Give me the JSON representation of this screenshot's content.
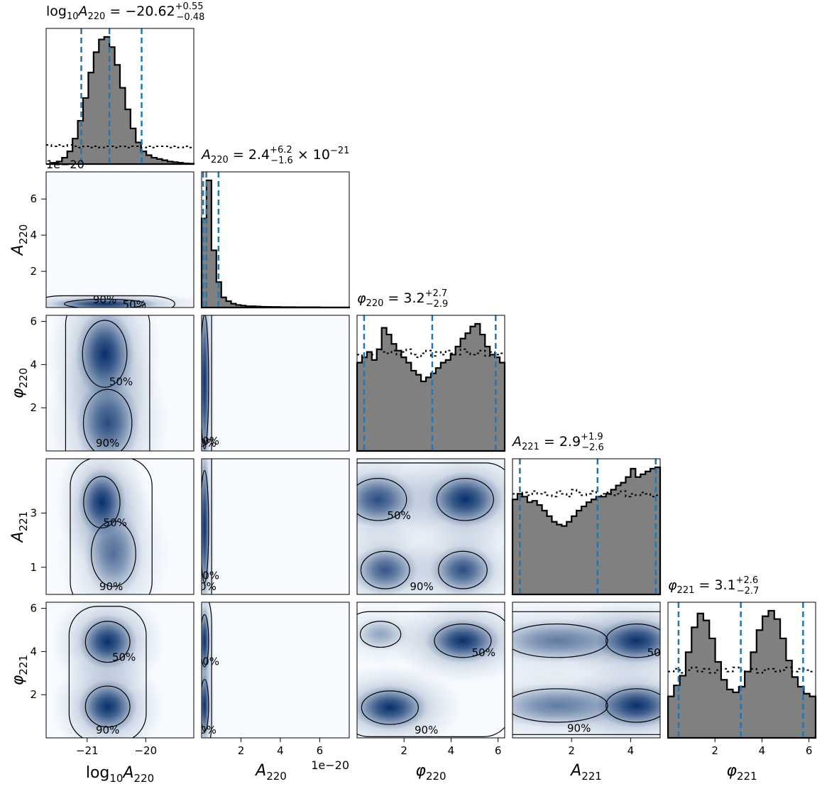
{
  "chart_data": {
    "type": "corner",
    "parameters": [
      {
        "key": "log10A220",
        "xlabel": "log10A220",
        "title": "log10A220 = −20.62 +0.55 −0.48",
        "median": -20.62,
        "err_plus": 0.55,
        "err_minus": 0.48,
        "range": [
          -21.7,
          -19.18
        ],
        "ticks": [
          -21,
          -20
        ],
        "quantiles": [
          -21.1,
          -20.62,
          -20.07
        ]
      },
      {
        "key": "A220",
        "xlabel": "A220",
        "title": "A220 = 2.4 +6.2 −1.6 × 10^−21",
        "median": 2.4e-21,
        "err_plus": 6.2e-21,
        "err_minus": 1.6e-21,
        "range": [
          0,
          7.5e-20
        ],
        "ticks": [
          2,
          4,
          6
        ],
        "tick_scale": "1e−20",
        "quantiles": [
          8e-22,
          2.4e-21,
          8.6e-21
        ]
      },
      {
        "key": "phi220",
        "xlabel": "φ220",
        "title": "φ220 = 3.2 +2.7 −2.9",
        "median": 3.2,
        "err_plus": 2.7,
        "err_minus": 2.9,
        "range": [
          0,
          6.283
        ],
        "ticks": [
          2,
          4,
          6
        ],
        "quantiles": [
          0.3,
          3.2,
          5.9
        ]
      },
      {
        "key": "A221",
        "xlabel": "A221",
        "title": "A221 = 2.9 +1.9 −2.6",
        "median": 2.9,
        "err_plus": 1.9,
        "err_minus": 2.6,
        "range": [
          0,
          5
        ],
        "ticks": [
          2,
          4
        ],
        "quantiles": [
          0.25,
          2.88,
          4.85
        ]
      },
      {
        "key": "phi221",
        "xlabel": "φ221",
        "title": "φ221 = 3.1 +2.6 −2.7",
        "median": 3.1,
        "err_plus": 2.6,
        "err_minus": 2.7,
        "range": [
          0,
          6.283
        ],
        "ticks": [
          2,
          4,
          6
        ],
        "quantiles": [
          0.45,
          3.1,
          5.75
        ]
      }
    ],
    "row_ticks": [
      {
        "row": "A220",
        "ticks": [
          2,
          4,
          6
        ],
        "tick_scale": "1e−20"
      },
      {
        "row": "phi220",
        "ticks": [
          2,
          4,
          6
        ]
      },
      {
        "row": "A221",
        "ticks": [
          1,
          3
        ]
      },
      {
        "row": "phi221",
        "ticks": [
          2,
          4,
          6
        ]
      }
    ],
    "histograms": [
      {
        "param": "log10A220",
        "posterior": [
          0,
          0.01,
          0.02,
          0.05,
          0.1,
          0.2,
          0.34,
          0.52,
          0.72,
          0.88,
          0.98,
          1.0,
          0.92,
          0.78,
          0.6,
          0.43,
          0.28,
          0.17,
          0.1,
          0.07,
          0.05,
          0.04,
          0.03,
          0.02,
          0.015,
          0.01,
          0.005,
          0.003
        ],
        "prior": [
          0.15,
          0.14,
          0.15,
          0.14,
          0.15,
          0.14,
          0.13,
          0.14,
          0.13,
          0.14,
          0.13,
          0.14,
          0.14,
          0.13,
          0.14,
          0.13,
          0.14,
          0.14,
          0.13,
          0.14,
          0.13,
          0.14,
          0.14,
          0.13,
          0.14,
          0.13,
          0.14,
          0.13
        ]
      },
      {
        "param": "A220",
        "posterior": [
          0.7,
          1.0,
          0.45,
          0.2,
          0.08,
          0.05,
          0.03,
          0.02,
          0.015,
          0.01,
          0.01,
          0.008,
          0.006,
          0.005,
          0.004,
          0.004,
          0.003,
          0.003,
          0.003,
          0.002,
          0.002,
          0.002,
          0.002,
          0.002,
          0.001,
          0.001,
          0.001,
          0.001,
          0.001,
          0.001
        ],
        "prior": []
      },
      {
        "param": "phi220",
        "posterior": [
          0.66,
          0.7,
          0.74,
          0.68,
          0.76,
          0.92,
          0.87,
          0.8,
          0.75,
          0.7,
          0.66,
          0.6,
          0.57,
          0.52,
          0.55,
          0.58,
          0.62,
          0.66,
          0.68,
          0.72,
          0.78,
          0.84,
          0.88,
          0.93,
          0.95,
          0.87,
          0.78,
          0.72,
          0.7,
          0.66
        ],
        "prior": [
          0.72,
          0.7,
          0.74,
          0.72,
          0.76,
          0.74,
          0.73,
          0.75,
          0.72,
          0.74,
          0.76,
          0.72,
          0.7,
          0.73,
          0.75,
          0.71,
          0.74,
          0.72,
          0.75,
          0.73,
          0.72,
          0.76,
          0.74,
          0.72,
          0.73,
          0.75,
          0.71,
          0.74,
          0.72,
          0.73
        ]
      },
      {
        "param": "A221",
        "posterior": [
          0.68,
          0.72,
          0.7,
          0.66,
          0.67,
          0.64,
          0.6,
          0.56,
          0.52,
          0.5,
          0.49,
          0.52,
          0.56,
          0.6,
          0.63,
          0.66,
          0.68,
          0.7,
          0.7,
          0.72,
          0.75,
          0.78,
          0.8,
          0.84,
          0.9,
          0.84,
          0.86,
          0.88,
          0.9,
          0.91
        ],
        "prior": [
          0.72,
          0.7,
          0.73,
          0.71,
          0.74,
          0.72,
          0.73,
          0.71,
          0.7,
          0.74,
          0.72,
          0.7,
          0.75,
          0.73,
          0.71,
          0.72,
          0.74,
          0.7,
          0.72,
          0.73,
          0.71,
          0.72,
          0.74,
          0.7,
          0.72,
          0.71,
          0.73,
          0.72,
          0.7,
          0.71
        ]
      },
      {
        "param": "phi221",
        "posterior": [
          0.3,
          0.38,
          0.45,
          0.62,
          0.8,
          0.9,
          0.85,
          0.72,
          0.55,
          0.42,
          0.35,
          0.33,
          0.37,
          0.48,
          0.62,
          0.78,
          0.88,
          0.92,
          0.86,
          0.72,
          0.56,
          0.44,
          0.37,
          0.32,
          0.3
        ],
        "prior": [
          0.48,
          0.5,
          0.47,
          0.49,
          0.51,
          0.48,
          0.5,
          0.47,
          0.49,
          0.5,
          0.48,
          0.51,
          0.49,
          0.48,
          0.5,
          0.47,
          0.49,
          0.5,
          0.48,
          0.49,
          0.51,
          0.48,
          0.5,
          0.49,
          0.48
        ]
      }
    ],
    "contour_labels": [
      "50%",
      "90%"
    ],
    "densities": [
      {
        "x": "log10A220",
        "y": "A220",
        "blobs": [
          {
            "x": -20.7,
            "y": 2e-21,
            "sx": 0.4,
            "sy": 1.5e-21,
            "w": 1.0
          }
        ]
      },
      {
        "x": "log10A220",
        "y": "phi220",
        "blobs": [
          {
            "x": -20.7,
            "y": 4.5,
            "sx": 0.22,
            "sy": 0.9,
            "w": 1.0
          },
          {
            "x": -20.65,
            "y": 1.3,
            "sx": 0.24,
            "sy": 0.9,
            "w": 0.8
          }
        ]
      },
      {
        "x": "log10A220",
        "y": "A221",
        "blobs": [
          {
            "x": -20.75,
            "y": 3.4,
            "sx": 0.18,
            "sy": 0.55,
            "w": 1.0
          },
          {
            "x": -20.55,
            "y": 1.5,
            "sx": 0.22,
            "sy": 0.7,
            "w": 0.6
          }
        ]
      },
      {
        "x": "log10A220",
        "y": "phi221",
        "blobs": [
          {
            "x": -20.65,
            "y": 4.45,
            "sx": 0.22,
            "sy": 0.55,
            "w": 1.0
          },
          {
            "x": -20.65,
            "y": 1.45,
            "sx": 0.22,
            "sy": 0.55,
            "w": 1.0
          }
        ]
      },
      {
        "x": "A220",
        "y": "phi220",
        "blobs": [
          {
            "x": 1.5e-21,
            "y": 3.2,
            "sx": 1.2e-21,
            "sy": 1.8,
            "w": 1.0
          }
        ]
      },
      {
        "x": "A220",
        "y": "A221",
        "blobs": [
          {
            "x": 1.5e-21,
            "y": 2.5,
            "sx": 1.2e-21,
            "sy": 1.2,
            "w": 1.0
          }
        ]
      },
      {
        "x": "A220",
        "y": "phi221",
        "blobs": [
          {
            "x": 1.5e-21,
            "y": 4.5,
            "sx": 1.2e-21,
            "sy": 0.7,
            "w": 1.0
          },
          {
            "x": 1.5e-21,
            "y": 1.5,
            "sx": 1.2e-21,
            "sy": 0.7,
            "w": 1.0
          }
        ]
      },
      {
        "x": "phi220",
        "y": "A221",
        "blobs": [
          {
            "x": 0.9,
            "y": 3.5,
            "sx": 0.7,
            "sy": 0.45,
            "w": 0.8
          },
          {
            "x": 4.6,
            "y": 3.5,
            "sx": 0.7,
            "sy": 0.45,
            "w": 1.0
          },
          {
            "x": 1.2,
            "y": 0.9,
            "sx": 0.6,
            "sy": 0.4,
            "w": 0.75
          },
          {
            "x": 4.5,
            "y": 0.9,
            "sx": 0.6,
            "sy": 0.4,
            "w": 0.8
          }
        ]
      },
      {
        "x": "phi220",
        "y": "phi221",
        "blobs": [
          {
            "x": 4.5,
            "y": 4.5,
            "sx": 0.7,
            "sy": 0.45,
            "w": 1.0
          },
          {
            "x": 1.4,
            "y": 1.4,
            "sx": 0.7,
            "sy": 0.45,
            "w": 1.0
          },
          {
            "x": 1.0,
            "y": 4.8,
            "sx": 0.5,
            "sy": 0.35,
            "w": 0.35
          }
        ]
      },
      {
        "x": "A221",
        "y": "phi221",
        "blobs": [
          {
            "x": 4.2,
            "y": 4.5,
            "sx": 0.6,
            "sy": 0.45,
            "w": 1.0
          },
          {
            "x": 4.2,
            "y": 1.5,
            "sx": 0.6,
            "sy": 0.45,
            "w": 1.0
          },
          {
            "x": 1.5,
            "y": 4.5,
            "sx": 1.0,
            "sy": 0.45,
            "w": 0.55
          },
          {
            "x": 1.5,
            "y": 1.5,
            "sx": 1.0,
            "sy": 0.45,
            "w": 0.55
          }
        ]
      }
    ],
    "colors": {
      "posterior_fill": "#808080",
      "quantile_line": "#1f77b4",
      "density_high": "#08306b",
      "density_low": "#f7fbff",
      "contour": "#000000"
    }
  }
}
